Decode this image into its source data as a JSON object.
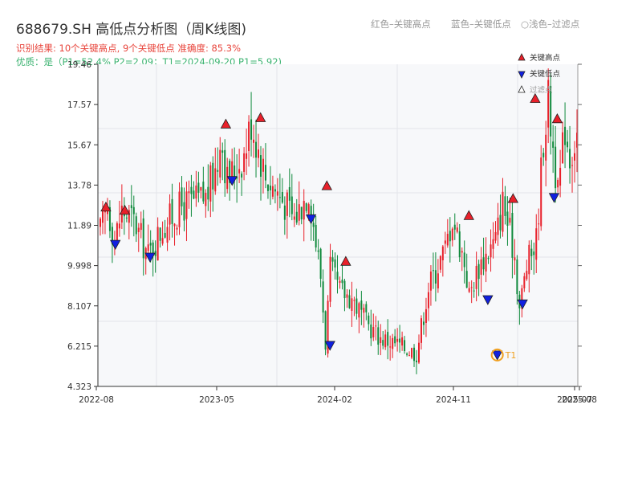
{
  "header": {
    "title": "688679.SH 高低点分析图（周K线图)",
    "result_line": "识别结果: 10个关键高点, 9个关键低点  准确度: 85.3%",
    "quality_line": "优质：是（P1=52.4%  P2=2.09；T1=2024-09-20 P1=5.92)",
    "legend_red": "红色–关键高点",
    "legend_blue": "蓝色–关键低点",
    "legend_light": "浅色–过滤点"
  },
  "colors": {
    "up": "#e8202a",
    "down": "#0f8a3c",
    "high_marker": "#e8202a",
    "low_marker": "#1020e0",
    "t1": "#f0a020",
    "plot_bg": "#f7f8fa"
  },
  "chart_data": {
    "type": "candlestick",
    "x_ticks": [
      "2022-08",
      "2023-05",
      "2024-02",
      "2024-11",
      "2025-07",
      "2025-08"
    ],
    "y_ticks": [
      "4.323",
      "6.215",
      "8.107",
      "9.998",
      "11.89",
      "13.78",
      "15.67",
      "17.57",
      "19.46"
    ],
    "ylim": [
      4.323,
      19.46
    ],
    "legend": [
      "关键高点",
      "关键低点",
      "过滤点"
    ],
    "annotation": "T1",
    "waypoints": [
      [
        0,
        11.6
      ],
      [
        3,
        12.8
      ],
      [
        6,
        11.2
      ],
      [
        9,
        12.6
      ],
      [
        14,
        12.1
      ],
      [
        20,
        10.5
      ],
      [
        26,
        11.8
      ],
      [
        34,
        12.8
      ],
      [
        44,
        13.2
      ],
      [
        49,
        14.8
      ],
      [
        50,
        16.4
      ],
      [
        53,
        14.0
      ],
      [
        60,
        15.2
      ],
      [
        63,
        16.8
      ],
      [
        69,
        14.2
      ],
      [
        75,
        13.3
      ],
      [
        81,
        12.2
      ],
      [
        87,
        13.6
      ],
      [
        92,
        9.5
      ],
      [
        94,
        6.4
      ],
      [
        96,
        9.8
      ],
      [
        100,
        8.8
      ],
      [
        105,
        8.5
      ],
      [
        111,
        7.3
      ],
      [
        117,
        6.6
      ],
      [
        124,
        6.3
      ],
      [
        130,
        6.0
      ],
      [
        132,
        5.9
      ],
      [
        137,
        9.0
      ],
      [
        144,
        10.8
      ],
      [
        147,
        12.3
      ],
      [
        152,
        10.2
      ],
      [
        154,
        8.6
      ],
      [
        158,
        10.0
      ],
      [
        165,
        11.2
      ],
      [
        168,
        13.0
      ],
      [
        173,
        10.5
      ],
      [
        175,
        8.0
      ],
      [
        178,
        10.0
      ],
      [
        182,
        11.2
      ],
      [
        185,
        16.0
      ],
      [
        187,
        17.8
      ],
      [
        190,
        14.5
      ],
      [
        191,
        13.2
      ],
      [
        194,
        16.6
      ],
      [
        196,
        15.2
      ],
      [
        199,
        16.2
      ]
    ],
    "highs": [
      [
        1,
        12.75
      ],
      [
        7,
        12.6
      ],
      [
        39,
        16.65
      ],
      [
        50,
        16.95
      ],
      [
        71,
        13.75
      ],
      [
        77,
        10.2
      ],
      [
        116,
        12.35
      ],
      [
        130,
        13.15
      ],
      [
        137,
        17.85
      ],
      [
        144,
        16.9
      ]
    ],
    "lows": [
      [
        4,
        11.0
      ],
      [
        15,
        10.4
      ],
      [
        41,
        14.0
      ],
      [
        66,
        12.2
      ],
      [
        72,
        6.25
      ],
      [
        125,
        5.8
      ],
      [
        122,
        8.4
      ],
      [
        133,
        8.2
      ],
      [
        143,
        13.2
      ]
    ],
    "t1_point": [
      125,
      5.8
    ]
  }
}
